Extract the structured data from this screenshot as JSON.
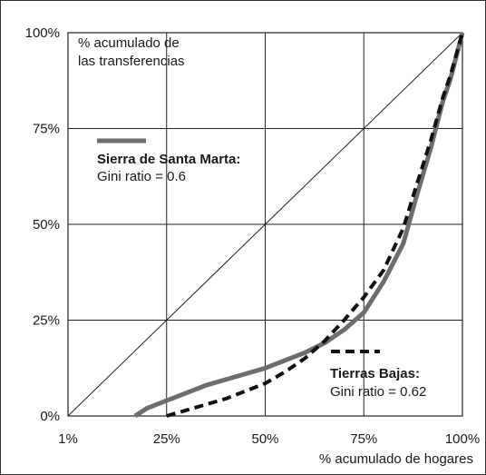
{
  "chart_data": {
    "type": "line",
    "xlabel": "% acumulado de hogares",
    "ylabel": "% acumulado de las transferencias",
    "ylabel_lines": [
      "% acumulado de",
      "las transferencias"
    ],
    "x_ticks": [
      "1%",
      "25%",
      "50%",
      "75%",
      "100%"
    ],
    "y_ticks": [
      "0%",
      "25%",
      "50%",
      "75%",
      "100%"
    ],
    "xlim": [
      0,
      100
    ],
    "ylim": [
      0,
      100
    ],
    "grid": true,
    "colors": {
      "sierra": "#6d6d6d",
      "tierras": "#111111",
      "equality": "#222222",
      "grid": "#222222"
    },
    "series": [
      {
        "name": "Sierra de Santa Marta:",
        "note": "Gini ratio = 0.6",
        "style": "solid",
        "x": [
          17,
          20,
          25,
          30,
          35,
          40,
          45,
          50,
          55,
          60,
          65,
          70,
          75,
          80,
          85,
          88,
          92,
          95,
          97,
          100
        ],
        "y": [
          0,
          2,
          4,
          6,
          8,
          9.5,
          11,
          12.5,
          14.5,
          16.5,
          19,
          22.5,
          27,
          35,
          45,
          56,
          70,
          82,
          88,
          100
        ]
      },
      {
        "name": "Tierras Bajas:",
        "note": "Gini ratio = 0.62",
        "style": "dashed",
        "x": [
          25,
          30,
          35,
          40,
          45,
          50,
          55,
          60,
          65,
          70,
          75,
          80,
          85,
          88,
          92,
          95,
          97,
          100
        ],
        "y": [
          0,
          1.5,
          3,
          4.5,
          6.5,
          8.5,
          11.5,
          15,
          19.5,
          25,
          31,
          38,
          49,
          59,
          72,
          83,
          89,
          100
        ]
      },
      {
        "name": "",
        "style": "thin",
        "x": [
          0,
          100
        ],
        "y": [
          0,
          100
        ]
      }
    ]
  }
}
